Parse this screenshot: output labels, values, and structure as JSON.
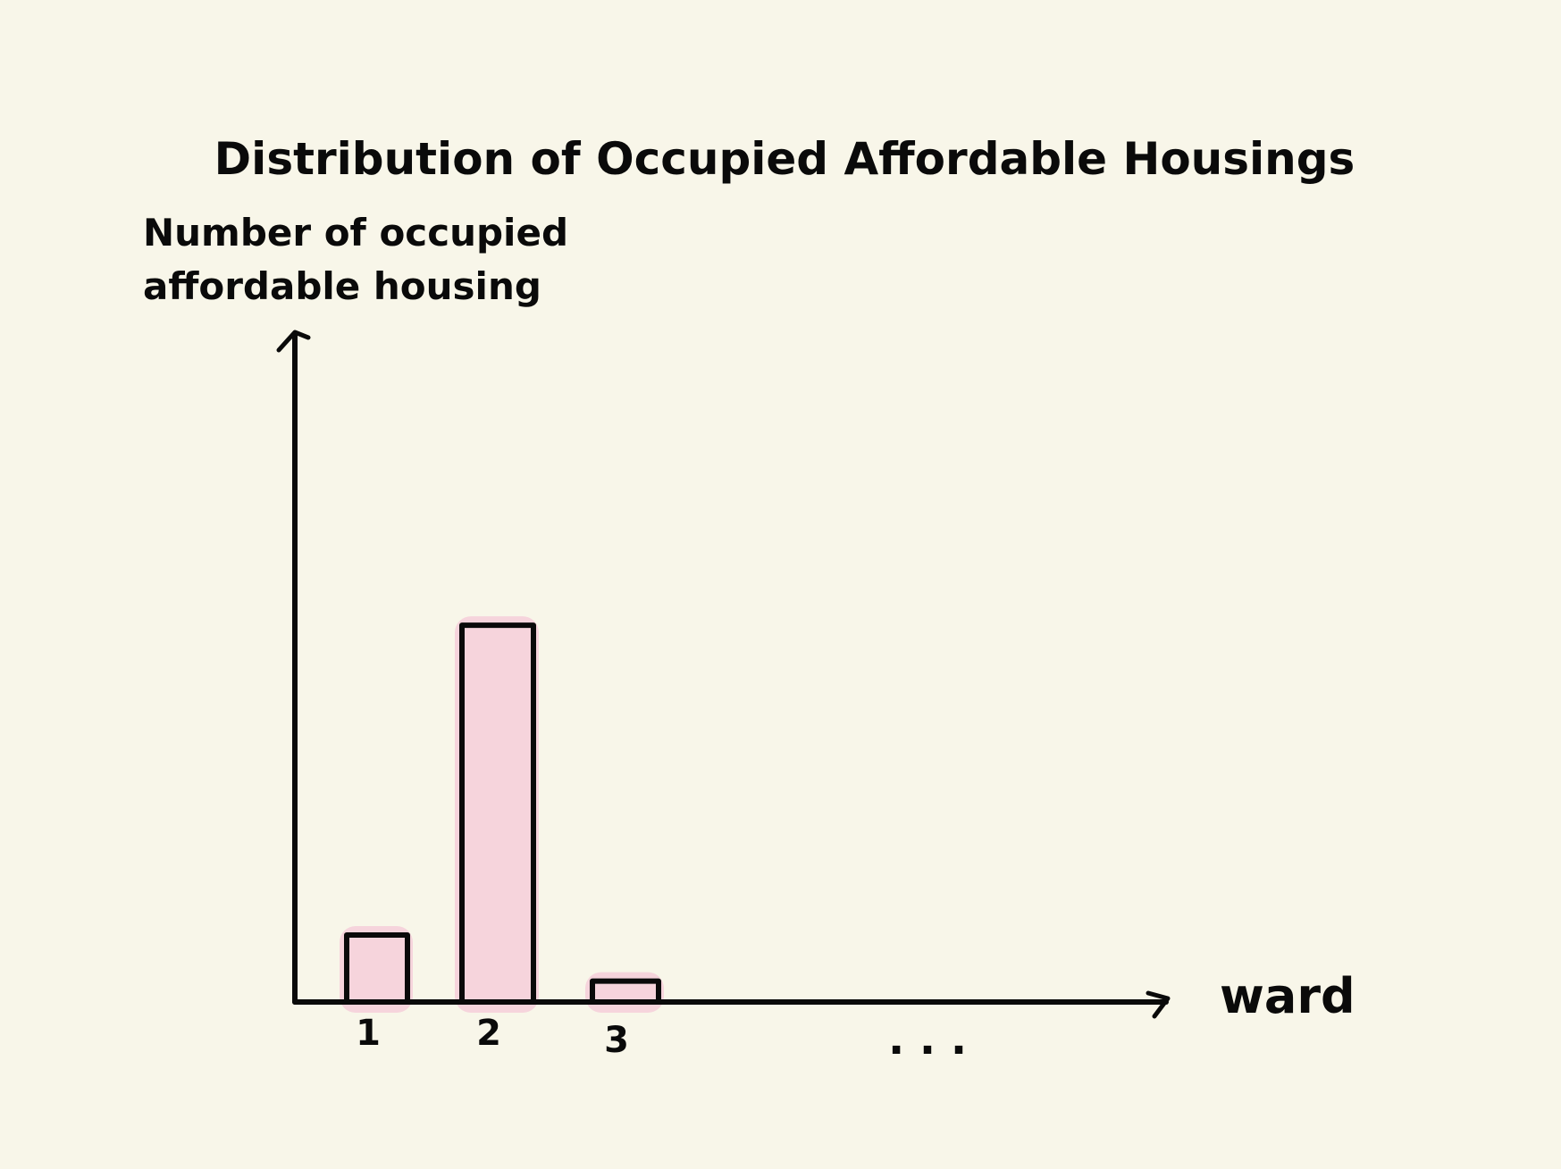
{
  "chart_data": {
    "type": "bar",
    "title": "Distribution of Occupied Affordable Housings",
    "ylabel_lines": [
      "Number of occupied",
      "affordable housing"
    ],
    "xlabel": "ward",
    "categories": [
      "1",
      "2",
      "3"
    ],
    "values": [
      16,
      90,
      5
    ],
    "ylim": [
      0,
      160
    ],
    "continuation": ". . .",
    "y_ticks_shown": false,
    "grid": false,
    "legend": "none"
  },
  "colors": {
    "background": "#f8f6e9",
    "bar_fill": "#f6d4dc",
    "bar_outline": "#0a0a0a",
    "axis": "#0a0a0a"
  }
}
